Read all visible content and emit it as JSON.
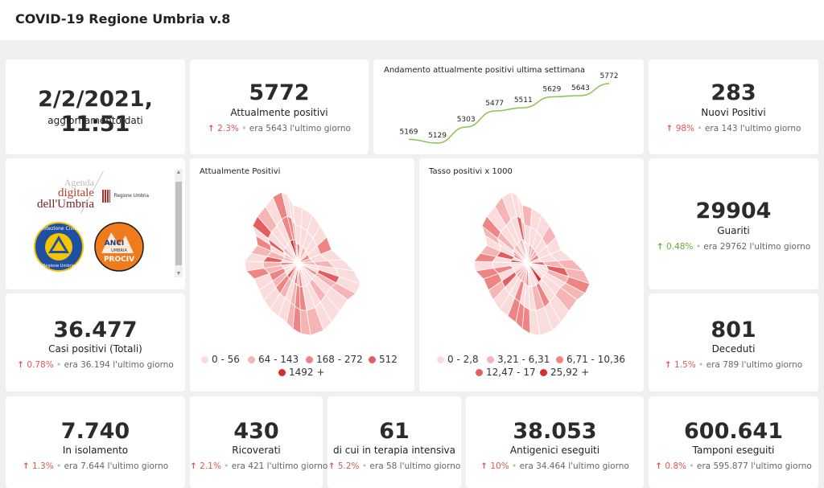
{
  "header": {
    "title": "COVID-19 Regione Umbria v.8"
  },
  "update": {
    "value": "2/2/2021, 11:51",
    "label": "aggiornamento dati"
  },
  "kpis": {
    "positivi": {
      "value": "5772",
      "label": "Attualmente positivi",
      "pct": "2.3%",
      "era": "era 5643 l'ultimo giorno",
      "trend": "up"
    },
    "nuovi": {
      "value": "283",
      "label": "Nuovi Positivi",
      "pct": "98%",
      "era": "era 143 l'ultimo giorno",
      "trend": "up"
    },
    "guariti": {
      "value": "29904",
      "label": "Guariti",
      "pct": "0.48%",
      "era": "era 29762 l'ultimo giorno",
      "trend": "up"
    },
    "casi": {
      "value": "36.477",
      "label": "Casi positivi (Totali)",
      "pct": "0.78%",
      "era": "era 36.194 l'ultimo giorno",
      "trend": "up"
    },
    "deceduti": {
      "value": "801",
      "label": "Deceduti",
      "pct": "1.5%",
      "era": "era 789 l'ultimo giorno",
      "trend": "up"
    },
    "isolamento": {
      "value": "7.740",
      "label": "In isolamento",
      "pct": "1.3%",
      "era": "era 7.644 l'ultimo giorno",
      "trend": "up"
    },
    "ricoverati": {
      "value": "430",
      "label": "Ricoverati",
      "pct": "2.1%",
      "era": "era 421 l'ultimo giorno",
      "trend": "up"
    },
    "terapia": {
      "value": "61",
      "label": "di cui in terapia intensiva",
      "pct": "5.2%",
      "era": "era 58 l'ultimo giorno",
      "trend": "up"
    },
    "antigenici": {
      "value": "38.053",
      "label": "Antigenici eseguiti",
      "pct": "10%",
      "era": "era 34.464 l'ultimo giorno",
      "trend": "up"
    },
    "tamponi": {
      "value": "600.641",
      "label": "Tamponi eseguiti",
      "pct": "0.8%",
      "era": "era 595.877 l'ultimo giorno",
      "trend": "up"
    }
  },
  "logos": {
    "agenda_line1": "Agenda",
    "agenda_line2": "digitale",
    "agenda_line3": "dell'Umbria",
    "regione": "Regione Umbria",
    "protezione_top": "Protezione Civile",
    "protezione_bottom": "Regione Umbria",
    "anci_top": "ANCI",
    "anci_mid": "UMBRIA",
    "anci_bottom": "PROCIV"
  },
  "map1": {
    "title": "Attualmente Positivi",
    "legend": [
      "0 - 56",
      "64 - 143",
      "168 - 272",
      "512",
      "1492 +"
    ],
    "colors": [
      "#fbdcdc",
      "#f6b4b4",
      "#ee8484",
      "#e35f5f",
      "#d92d2d"
    ]
  },
  "map2": {
    "title": "Tasso positivi x 1000",
    "legend": [
      "0 - 2,8",
      "3,21 - 6,31",
      "6,71 - 10,36",
      "12,47 - 17",
      "25,92 +"
    ],
    "colors": [
      "#fbdcdc",
      "#f6b4b4",
      "#ee8484",
      "#e35f5f",
      "#d92d2d"
    ]
  },
  "chart_data": {
    "type": "line",
    "title": "Andamento attualmente positivi ultima settimana",
    "values": [
      5169,
      5129,
      5303,
      5477,
      5511,
      5629,
      5643,
      5772
    ],
    "labels": [
      "5169",
      "5129",
      "5303",
      "5477",
      "5511",
      "5629",
      "5643",
      "5772"
    ],
    "line_color": "#8bc34a"
  }
}
